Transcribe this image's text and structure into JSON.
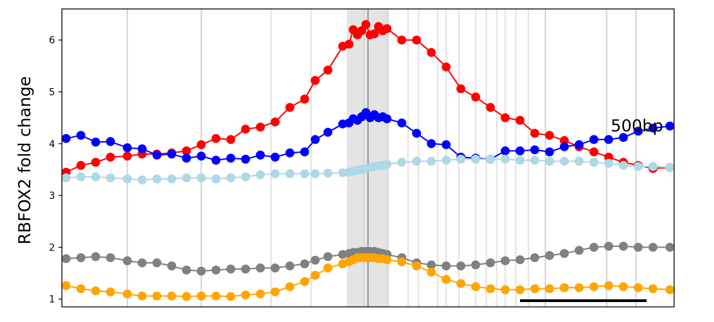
{
  "chart_data": {
    "type": "line",
    "ylabel": "RBFOX2 fold change",
    "xlabel": "",
    "ylim": [
      0.85,
      6.6
    ],
    "xlim": [
      -1.45,
      1.45
    ],
    "yticks": [
      1,
      2,
      3,
      4,
      5,
      6
    ],
    "scalebar_label": "500bp",
    "scalebar_range": [
      0.72,
      1.45
    ],
    "center_shade_range": [
      -0.1,
      0.1
    ],
    "center_line_x": 0,
    "vertical_lines_x": [
      -1.14,
      -0.79,
      -0.46,
      -0.27,
      -0.02,
      0.09,
      0.19,
      0.24,
      0.33,
      0.37,
      0.43,
      0.51,
      0.56,
      0.61,
      0.65,
      0.7,
      0.76,
      0.84,
      1.13,
      1.27
    ],
    "series": [
      {
        "color": "#ff0000",
        "marker_size": "large",
        "x": [
          -1.43,
          -1.36,
          -1.29,
          -1.22,
          -1.14,
          -1.07,
          -1.0,
          -0.93,
          -0.86,
          -0.79,
          -0.72,
          -0.65,
          -0.58,
          -0.51,
          -0.44,
          -0.37,
          -0.3,
          -0.25,
          -0.19,
          -0.12,
          -0.09,
          -0.07,
          -0.05,
          -0.03,
          -0.01,
          0.01,
          0.03,
          0.05,
          0.07,
          0.09,
          0.16,
          0.23,
          0.3,
          0.37,
          0.44,
          0.51,
          0.58,
          0.65,
          0.72,
          0.79,
          0.86,
          0.93,
          1.0,
          1.07,
          1.14,
          1.21,
          1.28,
          1.35,
          1.43
        ],
        "y": [
          3.45,
          3.58,
          3.64,
          3.74,
          3.76,
          3.8,
          3.8,
          3.82,
          3.86,
          3.98,
          4.1,
          4.08,
          4.28,
          4.32,
          4.42,
          4.7,
          4.86,
          5.22,
          5.42,
          5.88,
          5.92,
          6.2,
          6.1,
          6.18,
          6.3,
          6.1,
          6.12,
          6.26,
          6.18,
          6.22,
          6.0,
          6.0,
          5.76,
          5.48,
          5.06,
          4.9,
          4.7,
          4.5,
          4.45,
          4.2,
          4.16,
          4.06,
          3.94,
          3.84,
          3.74,
          3.64,
          3.58,
          3.52,
          3.54
        ]
      },
      {
        "color": "#0000ff",
        "marker_size": "large",
        "x": [
          -1.43,
          -1.36,
          -1.29,
          -1.22,
          -1.14,
          -1.07,
          -1.0,
          -0.93,
          -0.86,
          -0.79,
          -0.72,
          -0.65,
          -0.58,
          -0.51,
          -0.44,
          -0.37,
          -0.3,
          -0.25,
          -0.19,
          -0.12,
          -0.09,
          -0.07,
          -0.05,
          -0.03,
          -0.01,
          0.01,
          0.03,
          0.05,
          0.07,
          0.09,
          0.16,
          0.23,
          0.3,
          0.37,
          0.44,
          0.51,
          0.58,
          0.65,
          0.72,
          0.79,
          0.86,
          0.93,
          1.0,
          1.07,
          1.14,
          1.21,
          1.28,
          1.35,
          1.43
        ],
        "y": [
          4.1,
          4.16,
          4.03,
          4.04,
          3.92,
          3.9,
          3.78,
          3.8,
          3.72,
          3.76,
          3.68,
          3.72,
          3.7,
          3.78,
          3.74,
          3.82,
          3.84,
          4.08,
          4.22,
          4.38,
          4.4,
          4.48,
          4.45,
          4.52,
          4.6,
          4.5,
          4.56,
          4.5,
          4.52,
          4.48,
          4.4,
          4.2,
          4.0,
          3.98,
          3.74,
          3.72,
          3.7,
          3.86,
          3.86,
          3.88,
          3.84,
          3.94,
          3.98,
          4.08,
          4.08,
          4.12,
          4.24,
          4.3,
          4.34
        ]
      },
      {
        "color": "#add8e6",
        "marker_size": "large",
        "x": [
          -1.43,
          -1.36,
          -1.29,
          -1.22,
          -1.14,
          -1.07,
          -1.0,
          -0.93,
          -0.86,
          -0.79,
          -0.72,
          -0.65,
          -0.58,
          -0.51,
          -0.44,
          -0.37,
          -0.3,
          -0.25,
          -0.19,
          -0.12,
          -0.09,
          -0.07,
          -0.05,
          -0.03,
          -0.01,
          0.01,
          0.03,
          0.05,
          0.07,
          0.09,
          0.16,
          0.23,
          0.3,
          0.37,
          0.44,
          0.51,
          0.58,
          0.65,
          0.72,
          0.79,
          0.86,
          0.93,
          1.0,
          1.07,
          1.14,
          1.21,
          1.28,
          1.35,
          1.43
        ],
        "y": [
          3.34,
          3.36,
          3.36,
          3.34,
          3.32,
          3.3,
          3.32,
          3.32,
          3.34,
          3.34,
          3.32,
          3.34,
          3.36,
          3.4,
          3.42,
          3.42,
          3.42,
          3.42,
          3.43,
          3.44,
          3.45,
          3.47,
          3.48,
          3.5,
          3.52,
          3.54,
          3.56,
          3.57,
          3.58,
          3.6,
          3.64,
          3.66,
          3.66,
          3.68,
          3.7,
          3.7,
          3.7,
          3.7,
          3.68,
          3.68,
          3.66,
          3.66,
          3.66,
          3.64,
          3.62,
          3.58,
          3.56,
          3.56,
          3.54
        ]
      },
      {
        "color": "#808080",
        "marker_size": "large",
        "x": [
          -1.43,
          -1.36,
          -1.29,
          -1.22,
          -1.14,
          -1.07,
          -1.0,
          -0.93,
          -0.86,
          -0.79,
          -0.72,
          -0.65,
          -0.58,
          -0.51,
          -0.44,
          -0.37,
          -0.3,
          -0.25,
          -0.19,
          -0.12,
          -0.09,
          -0.07,
          -0.05,
          -0.03,
          -0.01,
          0.01,
          0.03,
          0.05,
          0.07,
          0.09,
          0.16,
          0.23,
          0.3,
          0.37,
          0.44,
          0.51,
          0.58,
          0.65,
          0.72,
          0.79,
          0.86,
          0.93,
          1.0,
          1.07,
          1.14,
          1.21,
          1.28,
          1.35,
          1.43
        ],
        "y": [
          1.78,
          1.8,
          1.82,
          1.8,
          1.74,
          1.7,
          1.7,
          1.64,
          1.56,
          1.54,
          1.56,
          1.58,
          1.58,
          1.6,
          1.6,
          1.64,
          1.68,
          1.75,
          1.82,
          1.86,
          1.88,
          1.9,
          1.9,
          1.92,
          1.92,
          1.92,
          1.92,
          1.9,
          1.88,
          1.86,
          1.8,
          1.7,
          1.66,
          1.64,
          1.64,
          1.66,
          1.7,
          1.74,
          1.76,
          1.8,
          1.84,
          1.88,
          1.94,
          2.0,
          2.02,
          2.02,
          2.0,
          2.0,
          2.0
        ]
      },
      {
        "color": "#ffa500",
        "marker_size": "large",
        "x": [
          -1.43,
          -1.36,
          -1.29,
          -1.22,
          -1.14,
          -1.07,
          -1.0,
          -0.93,
          -0.86,
          -0.79,
          -0.72,
          -0.65,
          -0.58,
          -0.51,
          -0.44,
          -0.37,
          -0.3,
          -0.25,
          -0.19,
          -0.12,
          -0.09,
          -0.07,
          -0.05,
          -0.03,
          -0.01,
          0.01,
          0.03,
          0.05,
          0.07,
          0.09,
          0.16,
          0.23,
          0.3,
          0.37,
          0.44,
          0.51,
          0.58,
          0.65,
          0.72,
          0.79,
          0.86,
          0.93,
          1.0,
          1.07,
          1.14,
          1.21,
          1.28,
          1.35,
          1.43
        ],
        "y": [
          1.26,
          1.2,
          1.16,
          1.14,
          1.1,
          1.06,
          1.06,
          1.06,
          1.05,
          1.06,
          1.06,
          1.05,
          1.08,
          1.1,
          1.14,
          1.24,
          1.34,
          1.46,
          1.6,
          1.68,
          1.72,
          1.76,
          1.8,
          1.8,
          1.8,
          1.8,
          1.8,
          1.78,
          1.78,
          1.76,
          1.72,
          1.64,
          1.52,
          1.38,
          1.3,
          1.24,
          1.2,
          1.18,
          1.18,
          1.2,
          1.2,
          1.22,
          1.22,
          1.24,
          1.26,
          1.24,
          1.22,
          1.2,
          1.18
        ]
      }
    ]
  }
}
